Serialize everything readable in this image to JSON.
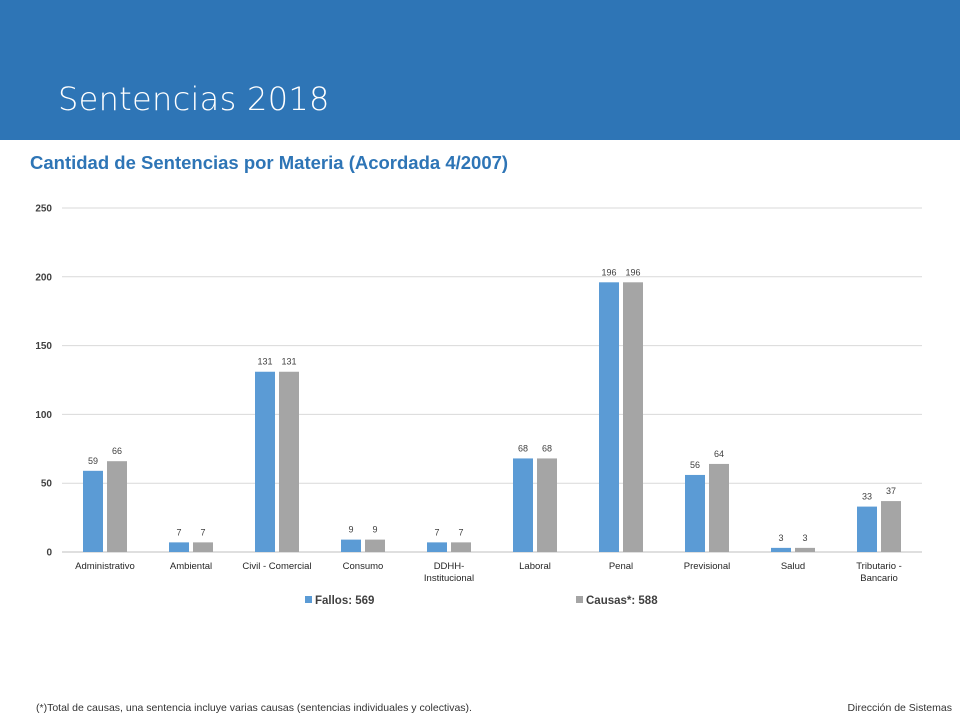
{
  "slide": {
    "title": "Sentencias 2018",
    "footnote": "(*)Total de causas, una sentencia incluye varias causas (sentencias individuales y colectivas).",
    "footer_right": "Dirección de Sistemas"
  },
  "chart_data": {
    "type": "bar",
    "title": "Cantidad de Sentencias por Materia (Acordada 4/2007)",
    "categories": [
      [
        "Administrativo"
      ],
      [
        "Ambiental"
      ],
      [
        "Civil - Comercial"
      ],
      [
        "Consumo"
      ],
      [
        "DDHH-",
        "Institucional"
      ],
      [
        "Laboral"
      ],
      [
        "Penal"
      ],
      [
        "Previsional"
      ],
      [
        "Salud"
      ],
      [
        "Tributario -",
        "Bancario"
      ]
    ],
    "series": [
      {
        "name": "Fallos: 569",
        "color": "#5b9bd5",
        "values": [
          59,
          7,
          131,
          9,
          7,
          68,
          196,
          56,
          3,
          33
        ]
      },
      {
        "name": "Causas*: 588",
        "color": "#a5a5a5",
        "values": [
          66,
          7,
          131,
          9,
          7,
          68,
          196,
          64,
          3,
          37
        ]
      }
    ],
    "ylim": [
      0,
      250
    ],
    "yticks": [
      0,
      50,
      100,
      150,
      200,
      250
    ],
    "grid": true,
    "legend_position": "bottom",
    "data_labels": true
  },
  "colors": {
    "header_band": "#2e75b6",
    "title_accent": "#2e75b6",
    "gridline": "#d9d9d9"
  }
}
